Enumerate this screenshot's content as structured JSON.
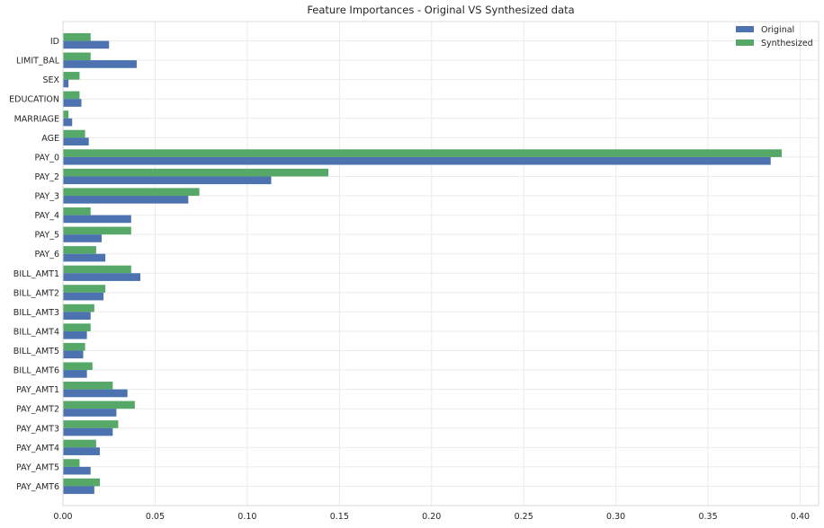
{
  "chart_data": {
    "type": "bar",
    "orientation": "horizontal",
    "title": "Feature Importances - Original VS Synthesized data",
    "xlabel": "",
    "ylabel": "",
    "xlim": [
      0,
      0.41
    ],
    "xticks": [
      "0.00",
      "0.05",
      "0.10",
      "0.15",
      "0.20",
      "0.25",
      "0.30",
      "0.35",
      "0.40"
    ],
    "grid": true,
    "legend_position": "top-right",
    "categories": [
      "ID",
      "LIMIT_BAL",
      "SEX",
      "EDUCATION",
      "MARRIAGE",
      "AGE",
      "PAY_0",
      "PAY_2",
      "PAY_3",
      "PAY_4",
      "PAY_5",
      "PAY_6",
      "BILL_AMT1",
      "BILL_AMT2",
      "BILL_AMT3",
      "BILL_AMT4",
      "BILL_AMT5",
      "BILL_AMT6",
      "PAY_AMT1",
      "PAY_AMT2",
      "PAY_AMT3",
      "PAY_AMT4",
      "PAY_AMT5",
      "PAY_AMT6"
    ],
    "series": [
      {
        "name": "Original",
        "color": "#4c72b0",
        "values": [
          0.025,
          0.04,
          0.003,
          0.01,
          0.005,
          0.014,
          0.384,
          0.113,
          0.068,
          0.037,
          0.021,
          0.023,
          0.042,
          0.022,
          0.015,
          0.013,
          0.011,
          0.013,
          0.035,
          0.029,
          0.027,
          0.02,
          0.015,
          0.017
        ]
      },
      {
        "name": "Synthesized",
        "color": "#55a868",
        "values": [
          0.015,
          0.015,
          0.009,
          0.009,
          0.003,
          0.012,
          0.39,
          0.144,
          0.074,
          0.015,
          0.037,
          0.018,
          0.037,
          0.023,
          0.017,
          0.015,
          0.012,
          0.016,
          0.027,
          0.039,
          0.03,
          0.018,
          0.009,
          0.02
        ]
      }
    ]
  }
}
